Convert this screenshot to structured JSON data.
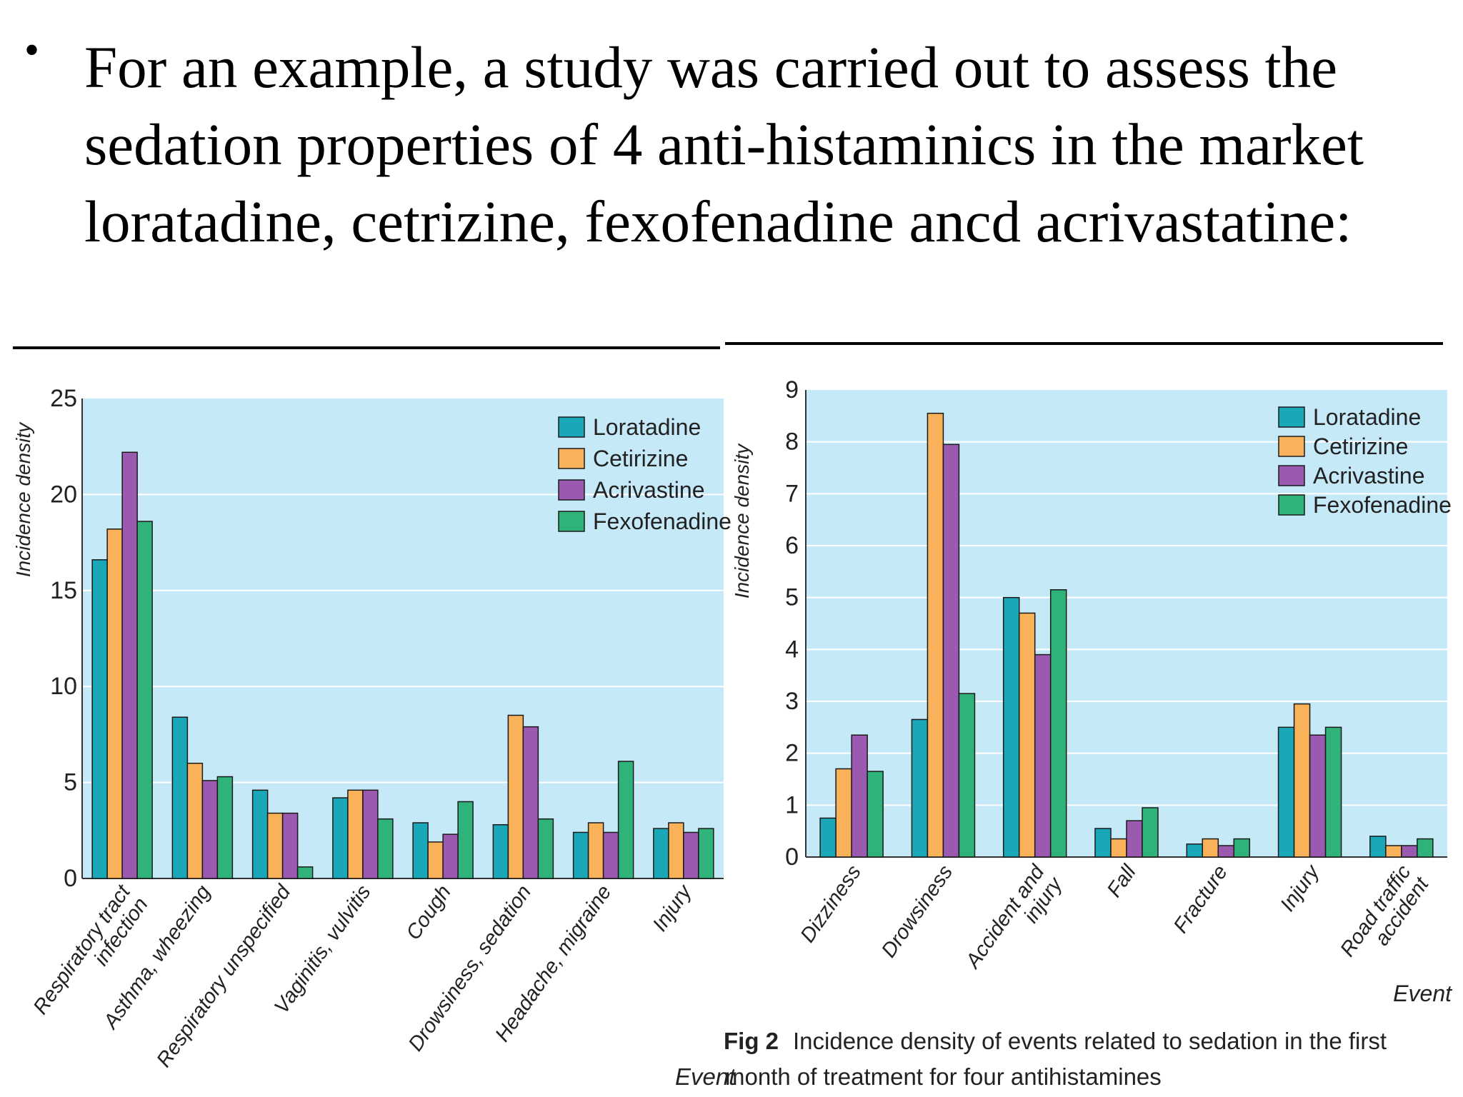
{
  "slide": {
    "bullet": "•",
    "text": "For an example, a study was carried out to assess the sedation properties of 4 anti-histaminics in the market loratadine, cetrizine, fexofenadine ancd acrivastatine:"
  },
  "colors": {
    "plot_bg": "#c6e9f8",
    "Loratadine": "#1aa7b7",
    "Cetirizine": "#f9b15a",
    "Acrivastine": "#9b59b0",
    "Fexofenadine": "#2fb37a"
  },
  "chart_data": [
    {
      "type": "bar",
      "ylabel": "Incidence density",
      "xlabel": "",
      "ylim": [
        0,
        25
      ],
      "yticks": [
        0,
        5,
        10,
        15,
        20,
        25
      ],
      "grid": true,
      "legend": "top-right",
      "categories": [
        [
          "Respiratory tract",
          "infection"
        ],
        [
          "Asthma, wheezing"
        ],
        [
          "Respiratory unspecified"
        ],
        [
          "Vaginitis, vulvitis"
        ],
        [
          "Cough"
        ],
        [
          "Drowsiness, sedation"
        ],
        [
          "Headache, migraine"
        ],
        [
          "Injury"
        ]
      ],
      "series": [
        {
          "name": "Loratadine",
          "values": [
            16.6,
            8.4,
            4.6,
            4.2,
            2.9,
            2.8,
            2.4,
            2.6
          ]
        },
        {
          "name": "Cetirizine",
          "values": [
            18.2,
            6.0,
            3.4,
            4.6,
            1.9,
            8.5,
            2.9,
            2.9
          ]
        },
        {
          "name": "Acrivastine",
          "values": [
            22.2,
            5.1,
            3.4,
            4.6,
            2.3,
            7.9,
            2.4,
            2.4
          ]
        },
        {
          "name": "Fexofenadine",
          "values": [
            18.6,
            5.3,
            0.6,
            3.1,
            4.0,
            3.1,
            6.1,
            2.6
          ]
        }
      ]
    },
    {
      "type": "bar",
      "ylabel": "Incidence density",
      "xlabel": "Event",
      "ylim": [
        0,
        9
      ],
      "yticks": [
        0,
        1,
        2,
        3,
        4,
        5,
        6,
        7,
        8,
        9
      ],
      "grid": true,
      "legend": "top-right",
      "categories": [
        [
          "Dizziness"
        ],
        [
          "Drowsiness"
        ],
        [
          "Accident and",
          "injury"
        ],
        [
          "Fall"
        ],
        [
          "Fracture"
        ],
        [
          "Injury"
        ],
        [
          "Road traffic",
          "accident"
        ]
      ],
      "series": [
        {
          "name": "Loratadine",
          "values": [
            0.75,
            2.65,
            5.0,
            0.55,
            0.25,
            2.5,
            0.4
          ]
        },
        {
          "name": "Cetirizine",
          "values": [
            1.7,
            8.55,
            4.7,
            0.35,
            0.35,
            2.95,
            0.22
          ]
        },
        {
          "name": "Acrivastine",
          "values": [
            2.35,
            7.95,
            3.9,
            0.7,
            0.22,
            2.35,
            0.22
          ]
        },
        {
          "name": "Fexofenadine",
          "values": [
            1.65,
            3.15,
            5.15,
            0.95,
            0.35,
            2.5,
            0.35
          ]
        }
      ],
      "caption": {
        "fig": "Fig 2",
        "line1": "Incidence density of events related to sedation in the first",
        "prefix": "Event",
        "line2": "month of treatment for four antihistamines"
      }
    }
  ]
}
